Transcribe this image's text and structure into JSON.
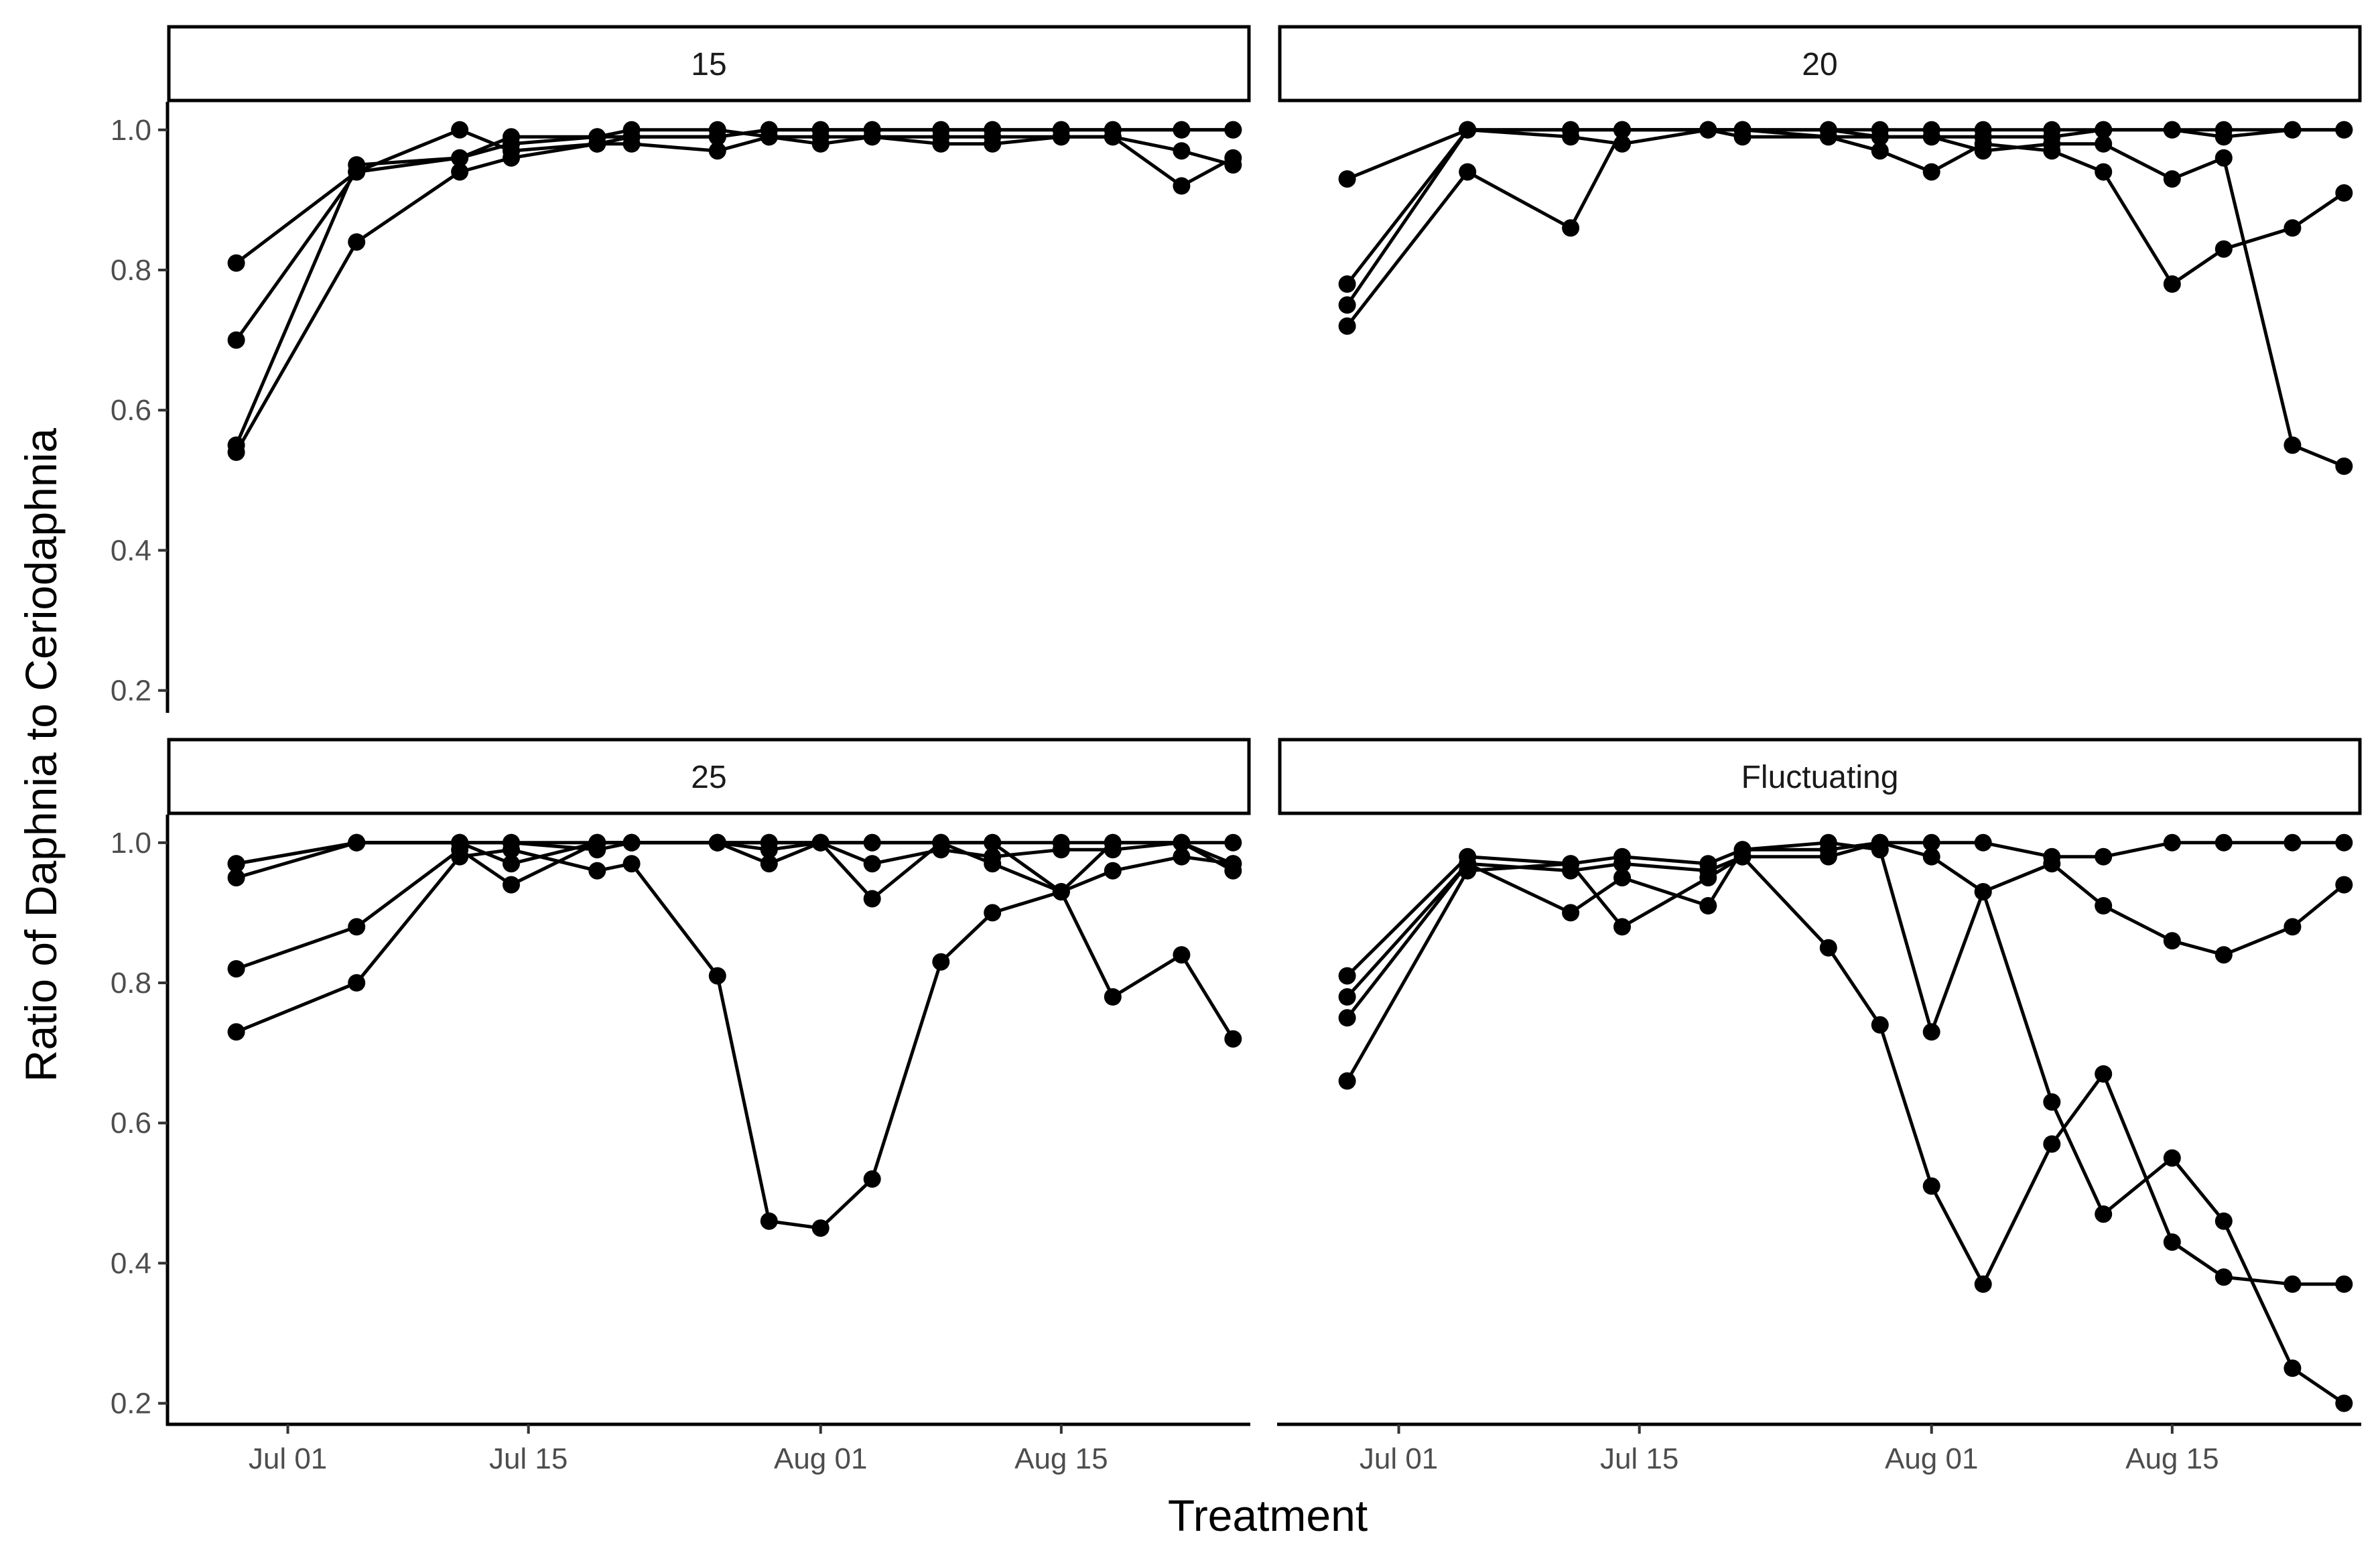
{
  "figure": {
    "xlabel": "Treatment",
    "ylabel": "Ratio of Daphnia to Ceriodaphnia",
    "line_color": "#000000"
  },
  "chart_data": {
    "type": "line",
    "facet_layout": "2x2",
    "shared_axes": true,
    "xlabel": "Treatment",
    "ylabel": "Ratio of Daphnia to Ceriodaphnia",
    "x_axis": {
      "type": "date",
      "ticks": [
        "2023-07-01",
        "2023-07-15",
        "2023-08-01",
        "2023-08-15"
      ],
      "tick_labels": [
        "Jul 01",
        "Jul 15",
        "Aug 01",
        "Aug 15"
      ],
      "range": [
        "2023-06-24",
        "2023-08-26"
      ]
    },
    "y_axis": {
      "ticks": [
        0.2,
        0.4,
        0.6,
        0.8,
        1.0
      ],
      "tick_labels": [
        "0.2",
        "0.4",
        "0.6",
        "0.8",
        "1.0"
      ],
      "range": [
        0.17,
        1.04
      ]
    },
    "grid": false,
    "legend": "none",
    "panels": [
      {
        "title": "15",
        "series": [
          {
            "x": [
              "2023-06-28",
              "2023-07-05",
              "2023-07-11",
              "2023-07-14",
              "2023-07-19",
              "2023-07-21",
              "2023-07-26",
              "2023-07-29",
              "2023-08-01",
              "2023-08-04",
              "2023-08-08",
              "2023-08-11",
              "2023-08-15",
              "2023-08-18",
              "2023-08-22",
              "2023-08-25"
            ],
            "y": [
              0.81,
              0.94,
              0.96,
              0.98,
              0.99,
              0.99,
              0.99,
              1.0,
              1.0,
              1.0,
              1.0,
              1.0,
              1.0,
              1.0,
              1.0,
              1.0
            ]
          },
          {
            "x": [
              "2023-06-28",
              "2023-07-05",
              "2023-07-11",
              "2023-07-14",
              "2023-07-19",
              "2023-07-21",
              "2023-07-26",
              "2023-07-29",
              "2023-08-01",
              "2023-08-04",
              "2023-08-08",
              "2023-08-11",
              "2023-08-15",
              "2023-08-18",
              "2023-08-22",
              "2023-08-25"
            ],
            "y": [
              0.7,
              0.94,
              1.0,
              0.97,
              0.98,
              0.98,
              0.97,
              0.99,
              0.99,
              0.99,
              0.99,
              0.99,
              0.99,
              0.99,
              0.97,
              0.95
            ]
          },
          {
            "x": [
              "2023-06-28",
              "2023-07-05",
              "2023-07-11",
              "2023-07-14",
              "2023-07-19",
              "2023-07-21",
              "2023-07-26",
              "2023-07-29",
              "2023-08-01",
              "2023-08-04",
              "2023-08-08",
              "2023-08-11",
              "2023-08-15",
              "2023-08-18",
              "2023-08-22",
              "2023-08-25"
            ],
            "y": [
              0.55,
              0.95,
              0.96,
              0.99,
              0.99,
              1.0,
              1.0,
              0.99,
              0.98,
              0.99,
              0.98,
              0.98,
              0.99,
              0.99,
              0.92,
              0.96
            ]
          },
          {
            "x": [
              "2023-06-28",
              "2023-07-05",
              "2023-07-11",
              "2023-07-14",
              "2023-07-19",
              "2023-07-21",
              "2023-07-26",
              "2023-07-29",
              "2023-08-01",
              "2023-08-04",
              "2023-08-08",
              "2023-08-11",
              "2023-08-15",
              "2023-08-18",
              "2023-08-22",
              "2023-08-25"
            ],
            "y": [
              0.54,
              0.84,
              0.94,
              0.96,
              0.98,
              0.99,
              0.99,
              1.0,
              1.0,
              1.0,
              1.0,
              1.0,
              1.0,
              1.0,
              1.0,
              1.0
            ]
          }
        ]
      },
      {
        "title": "20",
        "series": [
          {
            "x": [
              "2023-06-28",
              "2023-07-05",
              "2023-07-11",
              "2023-07-14",
              "2023-07-19",
              "2023-07-21",
              "2023-07-26",
              "2023-07-29",
              "2023-08-01",
              "2023-08-04",
              "2023-08-08",
              "2023-08-11",
              "2023-08-15",
              "2023-08-18",
              "2023-08-22",
              "2023-08-25"
            ],
            "y": [
              0.93,
              1.0,
              1.0,
              1.0,
              1.0,
              1.0,
              1.0,
              1.0,
              1.0,
              1.0,
              1.0,
              1.0,
              1.0,
              1.0,
              1.0,
              1.0
            ]
          },
          {
            "x": [
              "2023-06-28",
              "2023-07-05",
              "2023-07-11",
              "2023-07-14",
              "2023-07-19",
              "2023-07-21",
              "2023-07-26",
              "2023-07-29",
              "2023-08-01",
              "2023-08-04",
              "2023-08-08",
              "2023-08-11",
              "2023-08-15",
              "2023-08-18",
              "2023-08-22",
              "2023-08-25"
            ],
            "y": [
              0.78,
              1.0,
              0.99,
              0.98,
              1.0,
              1.0,
              0.99,
              0.97,
              0.94,
              0.98,
              0.97,
              0.94,
              0.78,
              0.83,
              0.86,
              0.91
            ]
          },
          {
            "x": [
              "2023-06-28",
              "2023-07-05",
              "2023-07-11",
              "2023-07-14",
              "2023-07-19",
              "2023-07-21",
              "2023-07-26",
              "2023-07-29",
              "2023-08-01",
              "2023-08-04",
              "2023-08-08",
              "2023-08-11",
              "2023-08-15",
              "2023-08-18",
              "2023-08-22",
              "2023-08-25"
            ],
            "y": [
              0.75,
              1.0,
              1.0,
              1.0,
              1.0,
              1.0,
              1.0,
              0.99,
              0.99,
              0.97,
              0.98,
              0.98,
              0.93,
              0.96,
              0.55,
              0.52
            ]
          },
          {
            "x": [
              "2023-06-28",
              "2023-07-05",
              "2023-07-11",
              "2023-07-14",
              "2023-07-19",
              "2023-07-21",
              "2023-07-26",
              "2023-07-29",
              "2023-08-01",
              "2023-08-04",
              "2023-08-08",
              "2023-08-11",
              "2023-08-15",
              "2023-08-18",
              "2023-08-22",
              "2023-08-25"
            ],
            "y": [
              0.72,
              0.94,
              0.86,
              1.0,
              1.0,
              0.99,
              0.99,
              0.99,
              0.99,
              0.99,
              0.99,
              1.0,
              1.0,
              0.99,
              1.0,
              1.0
            ]
          }
        ]
      },
      {
        "title": "25",
        "series": [
          {
            "x": [
              "2023-06-28",
              "2023-07-05",
              "2023-07-11",
              "2023-07-14",
              "2023-07-19",
              "2023-07-21",
              "2023-07-26",
              "2023-07-29",
              "2023-08-01",
              "2023-08-04",
              "2023-08-08",
              "2023-08-11",
              "2023-08-15",
              "2023-08-18",
              "2023-08-22",
              "2023-08-25"
            ],
            "y": [
              0.97,
              1.0,
              1.0,
              1.0,
              1.0,
              1.0,
              1.0,
              1.0,
              1.0,
              1.0,
              1.0,
              1.0,
              1.0,
              1.0,
              1.0,
              1.0
            ]
          },
          {
            "x": [
              "2023-06-28",
              "2023-07-05",
              "2023-07-11",
              "2023-07-14",
              "2023-07-19",
              "2023-07-21",
              "2023-07-26",
              "2023-07-29",
              "2023-08-01",
              "2023-08-04",
              "2023-08-08",
              "2023-08-11",
              "2023-08-15",
              "2023-08-18",
              "2023-08-22",
              "2023-08-25"
            ],
            "y": [
              0.95,
              1.0,
              1.0,
              0.97,
              1.0,
              1.0,
              1.0,
              0.97,
              1.0,
              0.92,
              1.0,
              0.97,
              0.93,
              1.0,
              1.0,
              0.97
            ]
          },
          {
            "x": [
              "2023-06-28",
              "2023-07-05",
              "2023-07-11",
              "2023-07-14",
              "2023-07-19",
              "2023-07-21",
              "2023-07-26",
              "2023-07-29",
              "2023-08-01",
              "2023-08-04",
              "2023-08-08",
              "2023-08-11",
              "2023-08-15",
              "2023-08-18",
              "2023-08-22",
              "2023-08-25"
            ],
            "y": [
              0.82,
              0.88,
              0.99,
              0.94,
              1.0,
              1.0,
              1.0,
              0.99,
              1.0,
              0.97,
              0.99,
              0.98,
              0.99,
              0.99,
              1.0,
              0.96
            ]
          },
          {
            "x": [
              "2023-06-28",
              "2023-07-05",
              "2023-07-11",
              "2023-07-14",
              "2023-07-19",
              "2023-07-21",
              "2023-07-26",
              "2023-07-29",
              "2023-08-01",
              "2023-08-04",
              "2023-08-08",
              "2023-08-11",
              "2023-08-15",
              "2023-08-18",
              "2023-08-22",
              "2023-08-25"
            ],
            "y": [
              0.73,
              0.8,
              0.98,
              0.99,
              0.96,
              0.97,
              0.81,
              0.46,
              0.45,
              0.52,
              0.83,
              0.9,
              0.93,
              0.96,
              0.98,
              0.97
            ]
          },
          {
            "x": [
              "2023-06-28",
              "2023-07-05",
              "2023-07-11",
              "2023-07-14",
              "2023-07-19",
              "2023-07-21",
              "2023-07-26",
              "2023-07-29",
              "2023-08-01",
              "2023-08-04",
              "2023-08-08",
              "2023-08-11",
              "2023-08-15",
              "2023-08-18",
              "2023-08-22",
              "2023-08-25"
            ],
            "y": [
              0.97,
              1.0,
              1.0,
              1.0,
              0.99,
              1.0,
              1.0,
              1.0,
              1.0,
              1.0,
              1.0,
              1.0,
              0.93,
              0.78,
              0.84,
              0.72
            ]
          }
        ]
      },
      {
        "title": "Fluctuating",
        "series": [
          {
            "x": [
              "2023-06-28",
              "2023-07-05",
              "2023-07-11",
              "2023-07-14",
              "2023-07-19",
              "2023-07-21",
              "2023-07-26",
              "2023-07-29",
              "2023-08-01",
              "2023-08-04",
              "2023-08-08",
              "2023-08-11",
              "2023-08-15",
              "2023-08-18",
              "2023-08-22",
              "2023-08-25"
            ],
            "y": [
              0.81,
              0.98,
              0.97,
              0.98,
              0.97,
              0.99,
              0.99,
              1.0,
              1.0,
              1.0,
              0.98,
              0.98,
              1.0,
              1.0,
              1.0,
              1.0
            ]
          },
          {
            "x": [
              "2023-06-28",
              "2023-07-05",
              "2023-07-11",
              "2023-07-14",
              "2023-07-19",
              "2023-07-21",
              "2023-07-26",
              "2023-07-29",
              "2023-08-01",
              "2023-08-04",
              "2023-08-08",
              "2023-08-11",
              "2023-08-15",
              "2023-08-18",
              "2023-08-22",
              "2023-08-25"
            ],
            "y": [
              0.78,
              0.97,
              0.96,
              0.97,
              0.96,
              0.98,
              0.98,
              1.0,
              0.98,
              0.93,
              0.97,
              0.91,
              0.86,
              0.84,
              0.88,
              0.94
            ]
          },
          {
            "x": [
              "2023-06-28",
              "2023-07-05",
              "2023-07-11",
              "2023-07-14",
              "2023-07-19",
              "2023-07-21",
              "2023-07-26",
              "2023-07-29",
              "2023-08-01",
              "2023-08-04",
              "2023-08-08",
              "2023-08-11",
              "2023-08-15",
              "2023-08-18",
              "2023-08-22",
              "2023-08-25"
            ],
            "y": [
              0.75,
              0.97,
              0.9,
              0.95,
              0.91,
              0.99,
              1.0,
              0.99,
              0.73,
              0.93,
              0.63,
              0.47,
              0.55,
              0.46,
              0.25,
              0.2
            ]
          },
          {
            "x": [
              "2023-06-28",
              "2023-07-05",
              "2023-07-11",
              "2023-07-14",
              "2023-07-19",
              "2023-07-21",
              "2023-07-26",
              "2023-07-29",
              "2023-08-01",
              "2023-08-04",
              "2023-08-08",
              "2023-08-11",
              "2023-08-15",
              "2023-08-18",
              "2023-08-22",
              "2023-08-25"
            ],
            "y": [
              0.66,
              0.96,
              0.97,
              0.88,
              0.95,
              0.98,
              0.85,
              0.74,
              0.51,
              0.37,
              0.57,
              0.67,
              0.43,
              0.38,
              0.37,
              0.37
            ]
          }
        ]
      }
    ]
  }
}
